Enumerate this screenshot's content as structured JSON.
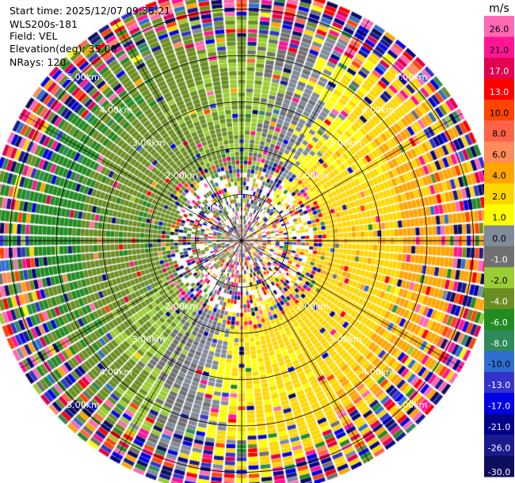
{
  "info": {
    "start_time": "Start time: 2025/12/07 09:35:21",
    "instrument": "WLS200s-181",
    "field": "Field: VEL",
    "elevation": "Elevation(deg): 35.00",
    "nrays": "NRays: 120"
  },
  "chart_data": {
    "type": "heatmap",
    "projection": "polar-ppi",
    "field": "VEL",
    "n_rays": 120,
    "elevation_deg": 35.0,
    "range_rings_km": [
      1,
      2,
      3,
      4,
      5
    ],
    "range_ring_labels": [
      "1.00km",
      "2.00km",
      "3.00km",
      "4.00km",
      "5.00km"
    ],
    "max_range_km": 5.5,
    "spokes_deg": [
      0,
      30,
      60,
      90,
      120,
      150,
      180,
      210,
      240,
      270,
      300,
      330
    ],
    "colorbar": {
      "unit": "m/s",
      "tick_labels": [
        "26.0",
        "21.0",
        "17.0",
        "13.0",
        "10.0",
        "8.0",
        "6.0",
        "4.0",
        "2.0",
        "1.0",
        "0.0",
        "-1.0",
        "-2.0",
        "-4.0",
        "-6.0",
        "-8.0",
        "-10.0",
        "-13.0",
        "-17.0",
        "-21.0",
        "-26.0",
        "-30.0"
      ],
      "bounds": [
        -30,
        -26,
        -21,
        -17,
        -13,
        -10,
        -8,
        -6,
        -4,
        -2,
        -1,
        0,
        1,
        2,
        4,
        6,
        8,
        10,
        13,
        17,
        21,
        26,
        30
      ],
      "colors": [
        "#0d0d5e",
        "#1a1a8c",
        "#00008b",
        "#0000e6",
        "#3333cc",
        "#2f6fd0",
        "#2e8b57",
        "#228b22",
        "#6b8e23",
        "#9acd32",
        "#707070",
        "#808a98",
        "#ffff00",
        "#ffd700",
        "#ffa500",
        "#ff8c5a",
        "#ff6347",
        "#ff4500",
        "#ff0000",
        "#e0004f",
        "#ff1493",
        "#ff69b4"
      ]
    },
    "dominant_pattern": [
      {
        "azimuth_deg": 0,
        "velocity_ms": -2.0
      },
      {
        "azimuth_deg": 45,
        "velocity_ms": 2.0
      },
      {
        "azimuth_deg": 90,
        "velocity_ms": 3.5
      },
      {
        "azimuth_deg": 135,
        "velocity_ms": 3.0
      },
      {
        "azimuth_deg": 180,
        "velocity_ms": 2.0
      },
      {
        "azimuth_deg": 225,
        "velocity_ms": -2.0
      },
      {
        "azimuth_deg": 270,
        "velocity_ms": -3.5
      },
      {
        "azimuth_deg": 315,
        "velocity_ms": -3.0
      }
    ]
  }
}
